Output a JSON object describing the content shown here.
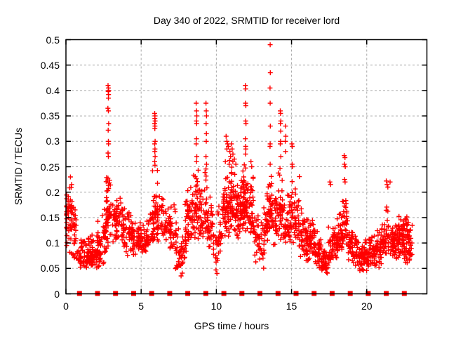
{
  "chart_data": {
    "type": "scatter",
    "title": "Day 340 of 2022, SRMTID for receiver lord",
    "xlabel": "GPS time / hours",
    "ylabel": "SRMTID / TECUs",
    "xlim": [
      0,
      24
    ],
    "ylim": [
      0,
      0.5
    ],
    "grid": true,
    "legend": "none",
    "xticks": {
      "values": [
        0,
        5,
        10,
        15,
        20
      ],
      "labels": [
        "0",
        "5",
        "10",
        "15",
        "20"
      ]
    },
    "yticks": {
      "values": [
        0,
        0.05,
        0.1,
        0.15,
        0.2,
        0.25,
        0.3,
        0.35,
        0.4,
        0.45,
        0.5
      ],
      "labels": [
        "0",
        "0.05",
        "0.1",
        "0.15",
        "0.2",
        "0.25",
        "0.3",
        "0.35",
        "0.4",
        "0.45",
        "0.5"
      ]
    },
    "colors": {
      "marker": "#ff0000",
      "grid": "#a8a8a8",
      "axis": "#000000",
      "background": "#ffffff"
    },
    "marker": {
      "shape": "plus",
      "size": 7
    },
    "series": [
      {
        "name": "srmtid-density-bins",
        "comment": "envelope of dense + scatter: [x_center, x_halfwidth, n_points, y_min, y_mode, y_max]",
        "bins": [
          [
            0.15,
            0.25,
            45,
            0.09,
            0.155,
            0.215
          ],
          [
            0.45,
            0.25,
            28,
            0.07,
            0.14,
            0.22
          ],
          [
            0.85,
            0.35,
            22,
            0.045,
            0.08,
            0.135
          ],
          [
            1.35,
            0.45,
            55,
            0.04,
            0.075,
            0.12
          ],
          [
            1.85,
            0.45,
            55,
            0.045,
            0.08,
            0.125
          ],
          [
            2.35,
            0.35,
            32,
            0.055,
            0.09,
            0.145
          ],
          [
            2.6,
            0.2,
            26,
            0.08,
            0.125,
            0.21
          ],
          [
            2.82,
            0.15,
            38,
            0.1,
            0.17,
            0.265
          ],
          [
            3.15,
            0.25,
            28,
            0.1,
            0.15,
            0.205
          ],
          [
            3.6,
            0.35,
            48,
            0.09,
            0.14,
            0.19
          ],
          [
            4.15,
            0.35,
            45,
            0.07,
            0.115,
            0.165
          ],
          [
            4.7,
            0.35,
            40,
            0.075,
            0.105,
            0.15
          ],
          [
            5.15,
            0.35,
            38,
            0.08,
            0.1,
            0.14
          ],
          [
            5.55,
            0.25,
            24,
            0.085,
            0.12,
            0.18
          ],
          [
            5.92,
            0.18,
            38,
            0.1,
            0.155,
            0.265
          ],
          [
            6.3,
            0.25,
            28,
            0.09,
            0.145,
            0.22
          ],
          [
            6.75,
            0.3,
            34,
            0.09,
            0.13,
            0.19
          ],
          [
            7.1,
            0.25,
            28,
            0.08,
            0.125,
            0.185
          ],
          [
            7.5,
            0.25,
            28,
            0.03,
            0.075,
            0.13
          ],
          [
            7.8,
            0.15,
            18,
            0.05,
            0.095,
            0.15
          ],
          [
            8.05,
            0.15,
            32,
            0.08,
            0.13,
            0.21
          ],
          [
            8.4,
            0.18,
            28,
            0.1,
            0.155,
            0.25
          ],
          [
            8.68,
            0.15,
            32,
            0.1,
            0.165,
            0.26
          ],
          [
            9.0,
            0.15,
            28,
            0.1,
            0.15,
            0.22
          ],
          [
            9.33,
            0.15,
            28,
            0.1,
            0.16,
            0.26
          ],
          [
            9.62,
            0.2,
            32,
            0.08,
            0.13,
            0.2
          ],
          [
            9.95,
            0.15,
            14,
            0.03,
            0.07,
            0.12
          ],
          [
            10.25,
            0.15,
            22,
            0.07,
            0.12,
            0.2
          ],
          [
            10.6,
            0.2,
            42,
            0.1,
            0.165,
            0.265
          ],
          [
            11.0,
            0.2,
            48,
            0.11,
            0.175,
            0.27
          ],
          [
            11.35,
            0.2,
            42,
            0.1,
            0.16,
            0.25
          ],
          [
            11.7,
            0.18,
            44,
            0.11,
            0.17,
            0.265
          ],
          [
            11.95,
            0.15,
            44,
            0.11,
            0.175,
            0.27
          ],
          [
            12.3,
            0.2,
            38,
            0.1,
            0.15,
            0.24
          ],
          [
            12.7,
            0.2,
            28,
            0.06,
            0.11,
            0.18
          ],
          [
            13.05,
            0.15,
            18,
            0.04,
            0.09,
            0.15
          ],
          [
            13.3,
            0.15,
            26,
            0.09,
            0.14,
            0.215
          ],
          [
            13.58,
            0.15,
            36,
            0.11,
            0.165,
            0.255
          ],
          [
            13.9,
            0.15,
            26,
            0.09,
            0.14,
            0.21
          ],
          [
            14.27,
            0.15,
            36,
            0.1,
            0.16,
            0.255
          ],
          [
            14.65,
            0.2,
            32,
            0.09,
            0.14,
            0.22
          ],
          [
            15.0,
            0.15,
            28,
            0.09,
            0.14,
            0.23
          ],
          [
            15.35,
            0.2,
            34,
            0.09,
            0.145,
            0.245
          ],
          [
            15.7,
            0.2,
            28,
            0.06,
            0.11,
            0.17
          ],
          [
            16.05,
            0.2,
            34,
            0.05,
            0.1,
            0.16
          ],
          [
            16.4,
            0.2,
            34,
            0.055,
            0.1,
            0.15
          ],
          [
            16.75,
            0.2,
            32,
            0.04,
            0.08,
            0.125
          ],
          [
            17.08,
            0.15,
            26,
            0.04,
            0.07,
            0.11
          ],
          [
            17.32,
            0.12,
            22,
            0.035,
            0.06,
            0.1
          ],
          [
            17.6,
            0.18,
            28,
            0.05,
            0.08,
            0.135
          ],
          [
            17.9,
            0.18,
            34,
            0.06,
            0.1,
            0.155
          ],
          [
            18.2,
            0.18,
            34,
            0.07,
            0.11,
            0.17
          ],
          [
            18.55,
            0.18,
            34,
            0.08,
            0.13,
            0.21
          ],
          [
            18.9,
            0.18,
            28,
            0.06,
            0.1,
            0.15
          ],
          [
            19.25,
            0.22,
            34,
            0.045,
            0.08,
            0.12
          ],
          [
            19.65,
            0.22,
            34,
            0.035,
            0.065,
            0.105
          ],
          [
            20.0,
            0.18,
            28,
            0.04,
            0.07,
            0.11
          ],
          [
            20.35,
            0.22,
            34,
            0.05,
            0.08,
            0.125
          ],
          [
            20.75,
            0.22,
            34,
            0.05,
            0.085,
            0.13
          ],
          [
            21.1,
            0.18,
            32,
            0.06,
            0.1,
            0.15
          ],
          [
            21.38,
            0.12,
            18,
            0.07,
            0.12,
            0.2
          ],
          [
            21.68,
            0.18,
            32,
            0.06,
            0.1,
            0.145
          ],
          [
            22.0,
            0.18,
            34,
            0.065,
            0.1,
            0.15
          ],
          [
            22.3,
            0.18,
            38,
            0.07,
            0.11,
            0.16
          ],
          [
            22.65,
            0.22,
            52,
            0.05,
            0.1,
            0.17
          ],
          [
            22.95,
            0.08,
            12,
            0.06,
            0.1,
            0.14
          ]
        ]
      },
      {
        "name": "srmtid-peak-points",
        "comment": "individually readable high points [hour, TECUs]",
        "points": [
          [
            0.3,
            0.23
          ],
          [
            0.38,
            0.215
          ],
          [
            2.8,
            0.41
          ],
          [
            2.82,
            0.405
          ],
          [
            2.84,
            0.4
          ],
          [
            2.81,
            0.398
          ],
          [
            2.83,
            0.392
          ],
          [
            2.82,
            0.385
          ],
          [
            2.79,
            0.365
          ],
          [
            2.82,
            0.36
          ],
          [
            2.84,
            0.335
          ],
          [
            2.81,
            0.322
          ],
          [
            2.82,
            0.3
          ],
          [
            2.83,
            0.295
          ],
          [
            2.8,
            0.277
          ],
          [
            2.82,
            0.27
          ],
          [
            5.9,
            0.355
          ],
          [
            5.92,
            0.35
          ],
          [
            5.91,
            0.345
          ],
          [
            5.93,
            0.34
          ],
          [
            5.9,
            0.335
          ],
          [
            5.92,
            0.33
          ],
          [
            5.91,
            0.325
          ],
          [
            5.93,
            0.3
          ],
          [
            5.9,
            0.295
          ],
          [
            5.92,
            0.285
          ],
          [
            5.91,
            0.28
          ],
          [
            5.93,
            0.27
          ],
          [
            5.9,
            0.26
          ],
          [
            5.92,
            0.253
          ],
          [
            8.66,
            0.375
          ],
          [
            8.68,
            0.36
          ],
          [
            8.7,
            0.35
          ],
          [
            8.67,
            0.34
          ],
          [
            8.69,
            0.335
          ],
          [
            8.68,
            0.305
          ],
          [
            8.66,
            0.295
          ],
          [
            8.7,
            0.27
          ],
          [
            8.68,
            0.26
          ],
          [
            9.31,
            0.375
          ],
          [
            9.33,
            0.36
          ],
          [
            9.35,
            0.35
          ],
          [
            9.32,
            0.335
          ],
          [
            9.34,
            0.315
          ],
          [
            9.33,
            0.3
          ],
          [
            9.31,
            0.27
          ],
          [
            9.35,
            0.255
          ],
          [
            10.6,
            0.26
          ],
          [
            10.65,
            0.31
          ],
          [
            10.7,
            0.3
          ],
          [
            10.75,
            0.295
          ],
          [
            10.8,
            0.29
          ],
          [
            10.7,
            0.285
          ],
          [
            10.85,
            0.255
          ],
          [
            10.9,
            0.28
          ],
          [
            10.95,
            0.27
          ],
          [
            11.0,
            0.295
          ],
          [
            11.05,
            0.285
          ],
          [
            11.1,
            0.275
          ],
          [
            11.2,
            0.265
          ],
          [
            11.3,
            0.255
          ],
          [
            11.93,
            0.41
          ],
          [
            11.95,
            0.403
          ],
          [
            11.94,
            0.375
          ],
          [
            11.96,
            0.37
          ],
          [
            11.95,
            0.34
          ],
          [
            11.97,
            0.335
          ],
          [
            11.93,
            0.305
          ],
          [
            11.95,
            0.29
          ],
          [
            11.96,
            0.285
          ],
          [
            11.94,
            0.275
          ],
          [
            12.3,
            0.26
          ],
          [
            12.35,
            0.25
          ],
          [
            13.58,
            0.49
          ],
          [
            13.59,
            0.435
          ],
          [
            13.57,
            0.405
          ],
          [
            13.58,
            0.375
          ],
          [
            13.59,
            0.33
          ],
          [
            13.58,
            0.295
          ],
          [
            13.57,
            0.29
          ],
          [
            13.58,
            0.255
          ],
          [
            14.25,
            0.36
          ],
          [
            14.27,
            0.355
          ],
          [
            14.29,
            0.34
          ],
          [
            14.26,
            0.335
          ],
          [
            14.28,
            0.32
          ],
          [
            14.27,
            0.3
          ],
          [
            14.25,
            0.295
          ],
          [
            14.29,
            0.27
          ],
          [
            14.6,
            0.33
          ],
          [
            14.62,
            0.31
          ],
          [
            14.58,
            0.3
          ],
          [
            14.6,
            0.28
          ],
          [
            15.02,
            0.295
          ],
          [
            15.05,
            0.29
          ],
          [
            15.04,
            0.255
          ],
          [
            15.06,
            0.25
          ],
          [
            17.55,
            0.22
          ],
          [
            17.6,
            0.215
          ],
          [
            18.5,
            0.272
          ],
          [
            18.55,
            0.268
          ],
          [
            18.52,
            0.255
          ],
          [
            18.57,
            0.25
          ],
          [
            18.53,
            0.225
          ],
          [
            18.56,
            0.22
          ],
          [
            21.3,
            0.222
          ],
          [
            21.35,
            0.215
          ],
          [
            21.4,
            0.21
          ],
          [
            21.55,
            0.22
          ]
        ]
      },
      {
        "name": "baseline-square-markers",
        "comment": "filled squares plotted at y=0",
        "shape": "square",
        "y": 0,
        "x": [
          0.9,
          2.1,
          3.3,
          4.5,
          5.7,
          6.9,
          8.1,
          9.3,
          10.5,
          11.7,
          12.9,
          14.1,
          15.3,
          16.5,
          17.7,
          18.9,
          20.1,
          21.3,
          22.5
        ]
      }
    ]
  }
}
